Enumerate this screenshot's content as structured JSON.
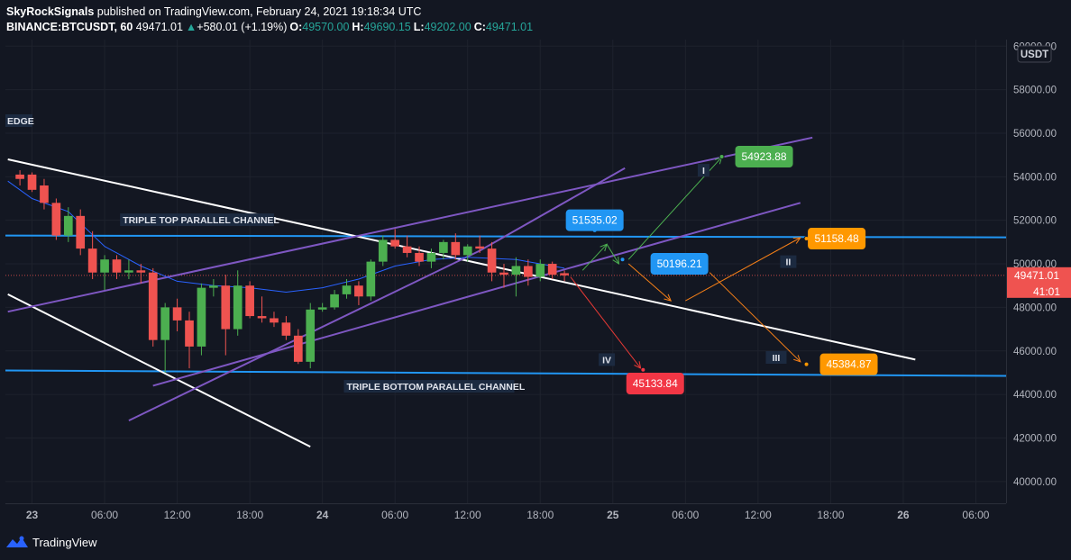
{
  "header": {
    "author": "SkyRockSignals",
    "published": "published on TradingView.com, February 24, 2021 19:18:34 UTC",
    "symbol": "BINANCE:BTCUSDT, 60",
    "last": "49471.01",
    "change_arrow": "▲",
    "change": "+580.01 (+1.19%)",
    "o_label": "O:",
    "o": "49570.00",
    "h_label": "H:",
    "h": "49690.15",
    "l_label": "L:",
    "l": "49202.00",
    "c_label": "C:",
    "c": "49471.01"
  },
  "footer": {
    "brand": "TradingView",
    "logo_icon": "tradingview-logo-icon"
  },
  "chart_data": {
    "type": "candlestick",
    "ylim": [
      39000,
      60300
    ],
    "y_ticks": [
      "40000.00",
      "42000.00",
      "44000.00",
      "46000.00",
      "48000.00",
      "50000.00",
      "52000.00",
      "54000.00",
      "56000.00",
      "58000.00",
      "60000.00"
    ],
    "y_tick_values": [
      40000,
      42000,
      44000,
      46000,
      48000,
      50000,
      52000,
      54000,
      56000,
      58000,
      60000
    ],
    "x_ticks": [
      {
        "label": "23",
        "t": 0
      },
      {
        "label": "06:00",
        "t": 6
      },
      {
        "label": "12:00",
        "t": 12
      },
      {
        "label": "18:00",
        "t": 18
      },
      {
        "label": "24",
        "t": 24
      },
      {
        "label": "06:00",
        "t": 30
      },
      {
        "label": "12:00",
        "t": 36
      },
      {
        "label": "18:00",
        "t": 42
      },
      {
        "label": "25",
        "t": 48
      },
      {
        "label": "06:00",
        "t": 54
      },
      {
        "label": "12:00",
        "t": 60
      },
      {
        "label": "18:00",
        "t": 66
      },
      {
        "label": "26",
        "t": 72
      },
      {
        "label": "06:00",
        "t": 78
      }
    ],
    "currency": "USDT",
    "price_label": "49471.01",
    "countdown": "41:01",
    "current_price": 49471.01,
    "colors": {
      "up": "#4caf50",
      "down": "#ef5350",
      "ma": "#2962ff",
      "channel": "#2196f3",
      "trend": "#7e57c2",
      "white": "#ffffff"
    },
    "candles": [
      {
        "t": -1,
        "o": 54100,
        "h": 54300,
        "l": 53600,
        "c": 53900
      },
      {
        "t": 0,
        "o": 54100,
        "h": 54200,
        "l": 53300,
        "c": 53400
      },
      {
        "t": 1,
        "o": 53600,
        "h": 53900,
        "l": 52500,
        "c": 52800
      },
      {
        "t": 2,
        "o": 52800,
        "h": 53000,
        "l": 51100,
        "c": 51300
      },
      {
        "t": 3,
        "o": 51300,
        "h": 52600,
        "l": 51000,
        "c": 52200
      },
      {
        "t": 4,
        "o": 52200,
        "h": 52500,
        "l": 50400,
        "c": 50700
      },
      {
        "t": 5,
        "o": 50700,
        "h": 51500,
        "l": 49300,
        "c": 49600
      },
      {
        "t": 6,
        "o": 49600,
        "h": 50400,
        "l": 48800,
        "c": 50200
      },
      {
        "t": 7,
        "o": 50200,
        "h": 50400,
        "l": 49300,
        "c": 49600
      },
      {
        "t": 8,
        "o": 49600,
        "h": 50200,
        "l": 49300,
        "c": 49700
      },
      {
        "t": 9,
        "o": 49700,
        "h": 50000,
        "l": 49100,
        "c": 49600
      },
      {
        "t": 10,
        "o": 49600,
        "h": 49800,
        "l": 46200,
        "c": 46500
      },
      {
        "t": 11,
        "o": 46500,
        "h": 48200,
        "l": 45000,
        "c": 48000
      },
      {
        "t": 12,
        "o": 48000,
        "h": 48400,
        "l": 46900,
        "c": 47400
      },
      {
        "t": 13,
        "o": 47400,
        "h": 47800,
        "l": 45200,
        "c": 46200
      },
      {
        "t": 14,
        "o": 46200,
        "h": 49100,
        "l": 45800,
        "c": 48900
      },
      {
        "t": 15,
        "o": 48900,
        "h": 49300,
        "l": 48500,
        "c": 49000
      },
      {
        "t": 16,
        "o": 49000,
        "h": 49500,
        "l": 45800,
        "c": 47000
      },
      {
        "t": 17,
        "o": 47000,
        "h": 49700,
        "l": 46700,
        "c": 49000
      },
      {
        "t": 18,
        "o": 49000,
        "h": 49200,
        "l": 47500,
        "c": 47600
      },
      {
        "t": 19,
        "o": 47600,
        "h": 48500,
        "l": 47300,
        "c": 47500
      },
      {
        "t": 20,
        "o": 47500,
        "h": 47800,
        "l": 47100,
        "c": 47300
      },
      {
        "t": 21,
        "o": 47300,
        "h": 47600,
        "l": 46500,
        "c": 46700
      },
      {
        "t": 22,
        "o": 46700,
        "h": 47000,
        "l": 45400,
        "c": 45500
      },
      {
        "t": 23,
        "o": 45500,
        "h": 48200,
        "l": 45200,
        "c": 47900
      },
      {
        "t": 24,
        "o": 47900,
        "h": 48200,
        "l": 47800,
        "c": 48000
      },
      {
        "t": 25,
        "o": 48000,
        "h": 48800,
        "l": 47900,
        "c": 48600
      },
      {
        "t": 26,
        "o": 48600,
        "h": 49300,
        "l": 48400,
        "c": 49000
      },
      {
        "t": 27,
        "o": 49000,
        "h": 49200,
        "l": 48100,
        "c": 48500
      },
      {
        "t": 28,
        "o": 48500,
        "h": 50200,
        "l": 48300,
        "c": 50100
      },
      {
        "t": 29,
        "o": 50100,
        "h": 51300,
        "l": 49900,
        "c": 51100
      },
      {
        "t": 30,
        "o": 51100,
        "h": 51600,
        "l": 50700,
        "c": 50800
      },
      {
        "t": 31,
        "o": 50800,
        "h": 51300,
        "l": 50300,
        "c": 50500
      },
      {
        "t": 32,
        "o": 50500,
        "h": 50800,
        "l": 49900,
        "c": 50100
      },
      {
        "t": 33,
        "o": 50100,
        "h": 50700,
        "l": 49800,
        "c": 50500
      },
      {
        "t": 34,
        "o": 50500,
        "h": 51100,
        "l": 50200,
        "c": 51000
      },
      {
        "t": 35,
        "o": 51000,
        "h": 51400,
        "l": 50200,
        "c": 50400
      },
      {
        "t": 36,
        "o": 50400,
        "h": 50900,
        "l": 50100,
        "c": 50800
      },
      {
        "t": 37,
        "o": 50800,
        "h": 51300,
        "l": 50500,
        "c": 50700
      },
      {
        "t": 38,
        "o": 50700,
        "h": 51000,
        "l": 49200,
        "c": 49600
      },
      {
        "t": 39,
        "o": 49600,
        "h": 50000,
        "l": 48900,
        "c": 49500
      },
      {
        "t": 40,
        "o": 49500,
        "h": 50300,
        "l": 48500,
        "c": 49900
      },
      {
        "t": 41,
        "o": 49900,
        "h": 50200,
        "l": 49000,
        "c": 49400
      },
      {
        "t": 42,
        "o": 49400,
        "h": 50200,
        "l": 49200,
        "c": 50000
      },
      {
        "t": 43,
        "o": 50000,
        "h": 50100,
        "l": 49300,
        "c": 49500
      },
      {
        "t": 44,
        "o": 49570,
        "h": 49690,
        "l": 49202,
        "c": 49471
      }
    ],
    "ma": [
      [
        -2,
        53800
      ],
      [
        0,
        53000
      ],
      [
        3,
        52400
      ],
      [
        6,
        50800
      ],
      [
        9,
        49900
      ],
      [
        12,
        49200
      ],
      [
        15,
        49000
      ],
      [
        18,
        48900
      ],
      [
        21,
        48700
      ],
      [
        24,
        48900
      ],
      [
        27,
        49300
      ],
      [
        30,
        49900
      ],
      [
        33,
        50200
      ],
      [
        36,
        50300
      ],
      [
        40,
        50200
      ],
      [
        44,
        49800
      ]
    ],
    "channels": [
      {
        "price": 51300,
        "label": "TRIPLE TOP PARALLEL CHANNEL",
        "label_t": 7.5,
        "label_price": 51900
      },
      {
        "price": 45100,
        "label": "TRIPLE BOTTOM PARALLEL CHANNEL",
        "label_t": 26,
        "label_price": 44250
      }
    ],
    "edge_label": "EDGE",
    "white_lines": [
      [
        [
          -2,
          54800
        ],
        [
          73,
          45600
        ]
      ],
      [
        [
          -2,
          48600
        ],
        [
          23,
          41600
        ]
      ]
    ],
    "purple_lines": [
      [
        [
          -2,
          47800
        ],
        [
          64.5,
          55800
        ]
      ],
      [
        [
          10,
          44400
        ],
        [
          63.5,
          52800
        ]
      ],
      [
        [
          8,
          42800
        ],
        [
          37,
          50600
        ],
        [
          49,
          54400
        ]
      ]
    ],
    "arrows": [
      {
        "color": "#4caf50",
        "pts": [
          [
            45.5,
            49700
          ],
          [
            47.5,
            50900
          ]
        ]
      },
      {
        "color": "#4caf50",
        "pts": [
          [
            47.5,
            50900
          ],
          [
            48.5,
            50000
          ]
        ]
      },
      {
        "color": "#4caf50",
        "pts": [
          [
            49.3,
            50200
          ],
          [
            57,
            54900
          ]
        ]
      },
      {
        "color": "#f57f17",
        "pts": [
          [
            49.3,
            50000
          ],
          [
            52.8,
            48300
          ]
        ]
      },
      {
        "color": "#f57f17",
        "pts": [
          [
            54,
            48300
          ],
          [
            63.5,
            51200
          ]
        ]
      },
      {
        "color": "#f57f17",
        "pts": [
          [
            56,
            49600
          ],
          [
            63.5,
            45500
          ]
        ]
      },
      {
        "color": "#e53935",
        "pts": [
          [
            44.5,
            49400
          ],
          [
            50.3,
            45200
          ]
        ]
      }
    ],
    "price_tags": [
      {
        "text": "51535.02",
        "t": 46.5,
        "price": 52000,
        "dot_t": 46.5,
        "dot_price": 51535,
        "color": "#2196f3"
      },
      {
        "text": "50196.21",
        "t": 53.5,
        "price": 50000,
        "dot_t": 48.8,
        "dot_price": 50196,
        "color": "#2196f3"
      },
      {
        "text": "54923.88",
        "t": 60.5,
        "price": 54923,
        "dot_t": 57,
        "dot_price": 54923,
        "color": "#4caf50"
      },
      {
        "text": "51158.48",
        "t": 66.5,
        "price": 51158,
        "dot_t": 64,
        "dot_price": 51158,
        "color": "#ff9800"
      },
      {
        "text": "45384.87",
        "t": 67.5,
        "price": 45384,
        "dot_t": 64,
        "dot_price": 45384,
        "color": "#ff9800"
      },
      {
        "text": "45133.84",
        "t": 51.5,
        "price": 44500,
        "dot_t": 50.5,
        "dot_price": 45133,
        "color": "#f23645"
      }
    ],
    "wave_labels": [
      {
        "text": "I",
        "t": 55.5,
        "price": 54300
      },
      {
        "text": "II",
        "t": 62.5,
        "price": 50100
      },
      {
        "text": "III",
        "t": 61.5,
        "price": 45700
      },
      {
        "text": "IV",
        "t": 47.5,
        "price": 45600
      }
    ]
  }
}
